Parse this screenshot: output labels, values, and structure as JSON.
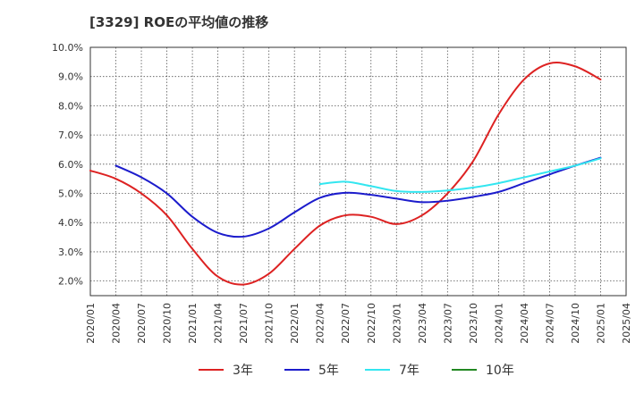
{
  "chart_data": {
    "type": "line",
    "title": "[3329]  ROEの平均値の推移",
    "xlabel": "",
    "ylabel": "",
    "ylim": [
      1.5,
      10.0
    ],
    "yticks": [
      2.0,
      3.0,
      4.0,
      5.0,
      6.0,
      7.0,
      8.0,
      9.0,
      10.0
    ],
    "ytick_labels": [
      "2.0%",
      "3.0%",
      "4.0%",
      "5.0%",
      "6.0%",
      "7.0%",
      "8.0%",
      "9.0%",
      "10.0%"
    ],
    "categories": [
      "2020/01",
      "2020/04",
      "2020/07",
      "2020/10",
      "2021/01",
      "2021/04",
      "2021/07",
      "2021/10",
      "2022/01",
      "2022/04",
      "2022/07",
      "2022/10",
      "2023/01",
      "2023/04",
      "2023/07",
      "2023/10",
      "2024/01",
      "2024/04",
      "2024/07",
      "2024/10",
      "2025/01",
      "2025/04"
    ],
    "grid": true,
    "legend_position": "bottom",
    "series": [
      {
        "name": "3年",
        "color": "#dd2222",
        "values": [
          5.78,
          5.5,
          5.0,
          4.25,
          3.1,
          2.15,
          1.88,
          2.25,
          3.1,
          3.9,
          4.25,
          4.2,
          3.95,
          4.25,
          5.0,
          6.1,
          7.7,
          8.9,
          9.45,
          9.35,
          8.9,
          null
        ]
      },
      {
        "name": "5年",
        "color": "#1c1ccc",
        "values": [
          null,
          5.95,
          5.55,
          5.0,
          4.2,
          3.65,
          3.52,
          3.8,
          4.35,
          4.85,
          5.02,
          4.95,
          4.82,
          4.7,
          4.75,
          4.88,
          5.05,
          5.35,
          5.65,
          5.95,
          6.22,
          null
        ]
      },
      {
        "name": "7年",
        "color": "#33e6f0",
        "values": [
          null,
          null,
          null,
          null,
          null,
          null,
          null,
          null,
          null,
          5.32,
          5.4,
          5.25,
          5.08,
          5.05,
          5.1,
          5.2,
          5.35,
          5.55,
          5.75,
          5.95,
          6.2,
          null
        ]
      },
      {
        "name": "10年",
        "color": "#228822",
        "values": [
          null,
          null,
          null,
          null,
          null,
          null,
          null,
          null,
          null,
          null,
          null,
          null,
          null,
          null,
          null,
          null,
          null,
          null,
          null,
          null,
          null,
          null
        ]
      }
    ]
  }
}
